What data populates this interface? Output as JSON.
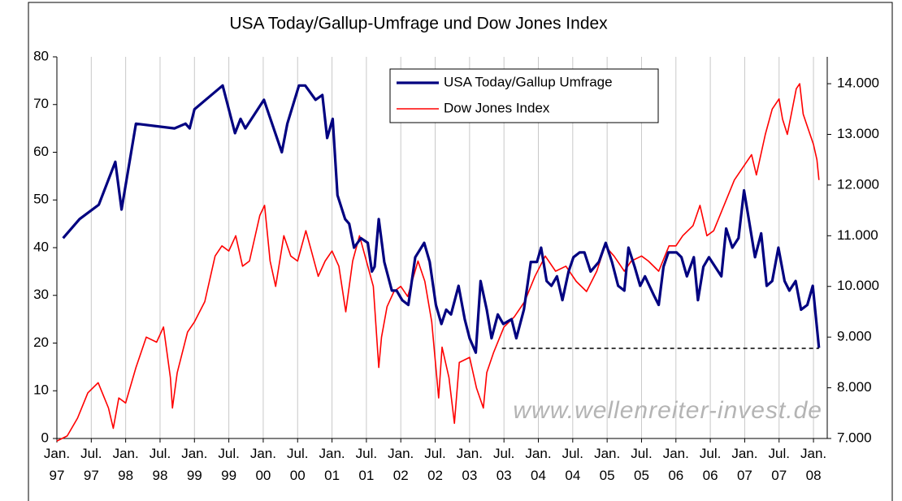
{
  "chart_data": {
    "type": "line",
    "title": "USA Today/Gallup-Umfrage und Dow Jones Index",
    "watermark": "www.wellenreiter-invest.de",
    "xlim": [
      1997,
      2008.2
    ],
    "xticks": [
      {
        "value": 1997,
        "label": "Jan. 97"
      },
      {
        "value": 1997.5,
        "label": "Jul. 97"
      },
      {
        "value": 1998,
        "label": "Jan. 98"
      },
      {
        "value": 1998.5,
        "label": "Jul. 98"
      },
      {
        "value": 1999,
        "label": "Jan. 99"
      },
      {
        "value": 1999.5,
        "label": "Jul. 99"
      },
      {
        "value": 2000,
        "label": "Jan. 00"
      },
      {
        "value": 2000.5,
        "label": "Jul. 00"
      },
      {
        "value": 2001,
        "label": "Jan. 01"
      },
      {
        "value": 2001.5,
        "label": "Jul. 01"
      },
      {
        "value": 2002,
        "label": "Jan. 02"
      },
      {
        "value": 2002.5,
        "label": "Jul. 02"
      },
      {
        "value": 2003,
        "label": "Jan. 03"
      },
      {
        "value": 2003.5,
        "label": "Jul. 03"
      },
      {
        "value": 2004,
        "label": "Jan. 04"
      },
      {
        "value": 2004.5,
        "label": "Jul. 04"
      },
      {
        "value": 2005,
        "label": "Jan. 05"
      },
      {
        "value": 2005.5,
        "label": "Jul. 05"
      },
      {
        "value": 2006,
        "label": "Jan. 06"
      },
      {
        "value": 2006.5,
        "label": "Jul. 06"
      },
      {
        "value": 2007,
        "label": "Jan. 07"
      },
      {
        "value": 2007.5,
        "label": "Jul. 07"
      },
      {
        "value": 2008,
        "label": "Jan. 08"
      }
    ],
    "ylim": [
      0,
      80
    ],
    "yticks": [
      0,
      10,
      20,
      30,
      40,
      50,
      60,
      70,
      80
    ],
    "y2lim": [
      7000,
      14530
    ],
    "y2ticks": [
      {
        "value": 7000,
        "label": "7.000"
      },
      {
        "value": 8000,
        "label": "8.000"
      },
      {
        "value": 9000,
        "label": "9.000"
      },
      {
        "value": 10000,
        "label": "10.000"
      },
      {
        "value": 11000,
        "label": "11.000"
      },
      {
        "value": 12000,
        "label": "12.000"
      },
      {
        "value": 13000,
        "label": "13.000"
      },
      {
        "value": 14000,
        "label": "14.000"
      }
    ],
    "grid": true,
    "legend": "top",
    "reference_line": {
      "y": 18.9,
      "x": [
        2003.47,
        2008.08
      ]
    },
    "series": [
      {
        "name": "USA Today/Gallup Umfrage",
        "color": "#000080",
        "x": [
          1997.09,
          1997.33,
          1997.61,
          1997.85,
          1997.94,
          1998.15,
          1998.71,
          1998.87,
          1998.93,
          1999.0,
          1999.41,
          1999.59,
          1999.67,
          1999.74,
          2000.01,
          2000.27,
          2000.35,
          2000.52,
          2000.61,
          2000.76,
          2000.86,
          2000.93,
          2001.01,
          2001.08,
          2001.19,
          2001.25,
          2001.32,
          2001.42,
          2001.52,
          2001.58,
          2001.62,
          2001.68,
          2001.76,
          2001.87,
          2001.94,
          2002.02,
          2002.11,
          2002.21,
          2002.34,
          2002.42,
          2002.51,
          2002.59,
          2002.66,
          2002.73,
          2002.84,
          2002.93,
          2003.0,
          2003.09,
          2003.16,
          2003.25,
          2003.32,
          2003.41,
          2003.49,
          2003.61,
          2003.68,
          2003.79,
          2003.89,
          2003.98,
          2004.04,
          2004.12,
          2004.19,
          2004.27,
          2004.35,
          2004.44,
          2004.51,
          2004.6,
          2004.67,
          2004.76,
          2004.88,
          2004.98,
          2005.07,
          2005.16,
          2005.25,
          2005.31,
          2005.4,
          2005.48,
          2005.55,
          2005.68,
          2005.75,
          2005.82,
          2005.89,
          2006.01,
          2006.08,
          2006.16,
          2006.26,
          2006.32,
          2006.4,
          2006.48,
          2006.66,
          2006.73,
          2006.82,
          2006.91,
          2006.99,
          2007.07,
          2007.15,
          2007.24,
          2007.32,
          2007.4,
          2007.49,
          2007.58,
          2007.65,
          2007.74,
          2007.82,
          2007.91,
          2007.99,
          2008.08
        ],
        "values": [
          42,
          46,
          49,
          58,
          48,
          66,
          65,
          66,
          65,
          69,
          74,
          64,
          67,
          65,
          71,
          60,
          66,
          74,
          74,
          71,
          72,
          63,
          67,
          51,
          46,
          45,
          40,
          42,
          41,
          35,
          36,
          46,
          37,
          31,
          31,
          29,
          28,
          38,
          41,
          37,
          28,
          24,
          27,
          26,
          32,
          25,
          21,
          18,
          33,
          27,
          21,
          26,
          24,
          25,
          21,
          27,
          37,
          37,
          40,
          33,
          32,
          34,
          29,
          35,
          38,
          39,
          39,
          35,
          37,
          41,
          37,
          32,
          31,
          40,
          36,
          32,
          34,
          30,
          28,
          36,
          39,
          39,
          38,
          34,
          38,
          29,
          36,
          38,
          34,
          44,
          40,
          42,
          52,
          45,
          38,
          43,
          32,
          33,
          40,
          33,
          31,
          33,
          27,
          28,
          32,
          19
        ]
      },
      {
        "name": "Dow Jones Index",
        "color": "#ff0000",
        "axis": "y2",
        "x": [
          1997.0,
          1997.15,
          1997.3,
          1997.45,
          1997.6,
          1997.75,
          1997.82,
          1997.9,
          1998.0,
          1998.15,
          1998.3,
          1998.45,
          1998.55,
          1998.65,
          1998.68,
          1998.75,
          1998.9,
          1999.0,
          1999.15,
          1999.3,
          1999.4,
          1999.5,
          1999.6,
          1999.7,
          1999.8,
          1999.95,
          2000.02,
          2000.1,
          2000.18,
          2000.3,
          2000.4,
          2000.5,
          2000.62,
          2000.7,
          2000.8,
          2000.9,
          2001.0,
          2001.1,
          2001.2,
          2001.3,
          2001.4,
          2001.5,
          2001.6,
          2001.68,
          2001.72,
          2001.8,
          2001.9,
          2002.0,
          2002.1,
          2002.25,
          2002.35,
          2002.45,
          2002.55,
          2002.6,
          2002.7,
          2002.78,
          2002.85,
          2003.0,
          2003.1,
          2003.2,
          2003.25,
          2003.35,
          2003.5,
          2003.65,
          2003.8,
          2003.95,
          2004.1,
          2004.25,
          2004.4,
          2004.55,
          2004.7,
          2004.85,
          2004.97,
          2005.1,
          2005.25,
          2005.35,
          2005.5,
          2005.6,
          2005.75,
          2005.9,
          2006.0,
          2006.1,
          2006.25,
          2006.35,
          2006.45,
          2006.55,
          2006.7,
          2006.85,
          2007.0,
          2007.1,
          2007.17,
          2007.3,
          2007.4,
          2007.5,
          2007.55,
          2007.62,
          2007.75,
          2007.8,
          2007.85,
          2007.9,
          2008.0,
          2008.05,
          2008.08
        ],
        "values": [
          6950,
          7050,
          7400,
          7900,
          8100,
          7600,
          7200,
          7800,
          7700,
          8400,
          9000,
          8900,
          9200,
          8200,
          7600,
          8300,
          9100,
          9300,
          9700,
          10600,
          10800,
          10700,
          11000,
          10400,
          10500,
          11400,
          11600,
          10500,
          10000,
          11000,
          10600,
          10500,
          11100,
          10700,
          10200,
          10500,
          10700,
          10400,
          9500,
          10500,
          11000,
          10500,
          10000,
          8400,
          9000,
          9600,
          9900,
          10000,
          9800,
          10500,
          10100,
          9300,
          7800,
          8800,
          8200,
          7300,
          8500,
          8600,
          8000,
          7600,
          8300,
          8700,
          9200,
          9400,
          9700,
          10200,
          10600,
          10300,
          10400,
          10100,
          9900,
          10300,
          10800,
          10600,
          10300,
          10500,
          10600,
          10500,
          10300,
          10800,
          10800,
          11000,
          11200,
          11600,
          11000,
          11100,
          11600,
          12100,
          12400,
          12600,
          12200,
          13000,
          13500,
          13700,
          13300,
          13000,
          13900,
          14000,
          13400,
          13200,
          12800,
          12500,
          12100
        ]
      }
    ]
  }
}
